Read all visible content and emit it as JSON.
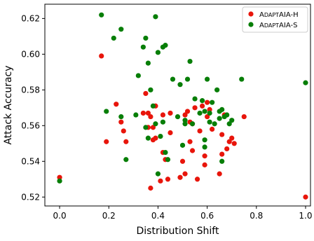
{
  "chart_data": {
    "type": "scatter",
    "xlabel": "Distribution Shift",
    "ylabel": "Attack Accuracy",
    "xlim": [
      -0.06,
      1.02
    ],
    "ylim": [
      0.515,
      0.628
    ],
    "xticks": [
      0.0,
      0.2,
      0.4,
      0.6,
      0.8,
      1.0
    ],
    "xtick_labels": [
      "0.0",
      "0.2",
      "0.4",
      "0.6",
      "0.8",
      "1.0"
    ],
    "yticks": [
      0.52,
      0.54,
      0.56,
      0.58,
      0.6,
      0.62
    ],
    "ytick_labels": [
      "0.52",
      "0.54",
      "0.56",
      "0.58",
      "0.60",
      "0.62"
    ],
    "grid": false,
    "legend_position": "top-right",
    "series": [
      {
        "name": "AdaptAIA-H",
        "color": "#e8150b",
        "points": [
          [
            0.0,
            0.531
          ],
          [
            0.17,
            0.599
          ],
          [
            0.19,
            0.551
          ],
          [
            0.23,
            0.572
          ],
          [
            0.25,
            0.562
          ],
          [
            0.26,
            0.557
          ],
          [
            0.27,
            0.551
          ],
          [
            0.34,
            0.567
          ],
          [
            0.35,
            0.578
          ],
          [
            0.36,
            0.567
          ],
          [
            0.36,
            0.559
          ],
          [
            0.37,
            0.525
          ],
          [
            0.37,
            0.565
          ],
          [
            0.38,
            0.552
          ],
          [
            0.38,
            0.559
          ],
          [
            0.39,
            0.553
          ],
          [
            0.39,
            0.571
          ],
          [
            0.41,
            0.529
          ],
          [
            0.42,
            0.566
          ],
          [
            0.42,
            0.545
          ],
          [
            0.43,
            0.541
          ],
          [
            0.44,
            0.53
          ],
          [
            0.45,
            0.556
          ],
          [
            0.45,
            0.567
          ],
          [
            0.49,
            0.531
          ],
          [
            0.5,
            0.54
          ],
          [
            0.51,
            0.533
          ],
          [
            0.51,
            0.566
          ],
          [
            0.52,
            0.568
          ],
          [
            0.53,
            0.562
          ],
          [
            0.53,
            0.551
          ],
          [
            0.54,
            0.546
          ],
          [
            0.54,
            0.561
          ],
          [
            0.55,
            0.57
          ],
          [
            0.56,
            0.53
          ],
          [
            0.57,
            0.557
          ],
          [
            0.58,
            0.571
          ],
          [
            0.59,
            0.543
          ],
          [
            0.59,
            0.538
          ],
          [
            0.6,
            0.565
          ],
          [
            0.6,
            0.573
          ],
          [
            0.61,
            0.569
          ],
          [
            0.62,
            0.558
          ],
          [
            0.65,
            0.533
          ],
          [
            0.66,
            0.544
          ],
          [
            0.66,
            0.555
          ],
          [
            0.67,
            0.566
          ],
          [
            0.68,
            0.547
          ],
          [
            0.69,
            0.551
          ],
          [
            0.7,
            0.553
          ],
          [
            0.71,
            0.55
          ],
          [
            0.75,
            0.565
          ],
          [
            1.0,
            0.52
          ]
        ]
      },
      {
        "name": "AdaptAIA-S",
        "color": "#077e07",
        "points": [
          [
            0.0,
            0.529
          ],
          [
            0.17,
            0.622
          ],
          [
            0.19,
            0.568
          ],
          [
            0.22,
            0.609
          ],
          [
            0.25,
            0.614
          ],
          [
            0.25,
            0.565
          ],
          [
            0.27,
            0.541
          ],
          [
            0.31,
            0.566
          ],
          [
            0.32,
            0.588
          ],
          [
            0.34,
            0.604
          ],
          [
            0.35,
            0.609
          ],
          [
            0.35,
            0.559
          ],
          [
            0.36,
            0.595
          ],
          [
            0.36,
            0.553
          ],
          [
            0.37,
            0.58
          ],
          [
            0.38,
            0.571
          ],
          [
            0.39,
            0.621
          ],
          [
            0.39,
            0.561
          ],
          [
            0.4,
            0.601
          ],
          [
            0.4,
            0.533
          ],
          [
            0.41,
            0.554
          ],
          [
            0.42,
            0.604
          ],
          [
            0.42,
            0.562
          ],
          [
            0.43,
            0.605
          ],
          [
            0.43,
            0.545
          ],
          [
            0.44,
            0.541
          ],
          [
            0.46,
            0.586
          ],
          [
            0.48,
            0.565
          ],
          [
            0.49,
            0.583
          ],
          [
            0.5,
            0.549
          ],
          [
            0.51,
            0.563
          ],
          [
            0.51,
            0.561
          ],
          [
            0.52,
            0.586
          ],
          [
            0.53,
            0.596
          ],
          [
            0.54,
            0.561
          ],
          [
            0.55,
            0.575
          ],
          [
            0.57,
            0.567
          ],
          [
            0.58,
            0.574
          ],
          [
            0.59,
            0.552
          ],
          [
            0.59,
            0.548
          ],
          [
            0.59,
            0.568
          ],
          [
            0.6,
            0.586
          ],
          [
            0.61,
            0.567
          ],
          [
            0.61,
            0.562
          ],
          [
            0.62,
            0.573
          ],
          [
            0.63,
            0.561
          ],
          [
            0.64,
            0.58
          ],
          [
            0.65,
            0.564
          ],
          [
            0.65,
            0.568
          ],
          [
            0.66,
            0.569
          ],
          [
            0.66,
            0.54
          ],
          [
            0.67,
            0.565
          ],
          [
            0.68,
            0.566
          ],
          [
            0.69,
            0.561
          ],
          [
            0.7,
            0.563
          ],
          [
            0.74,
            0.586
          ],
          [
            1.0,
            0.584
          ]
        ]
      }
    ]
  }
}
